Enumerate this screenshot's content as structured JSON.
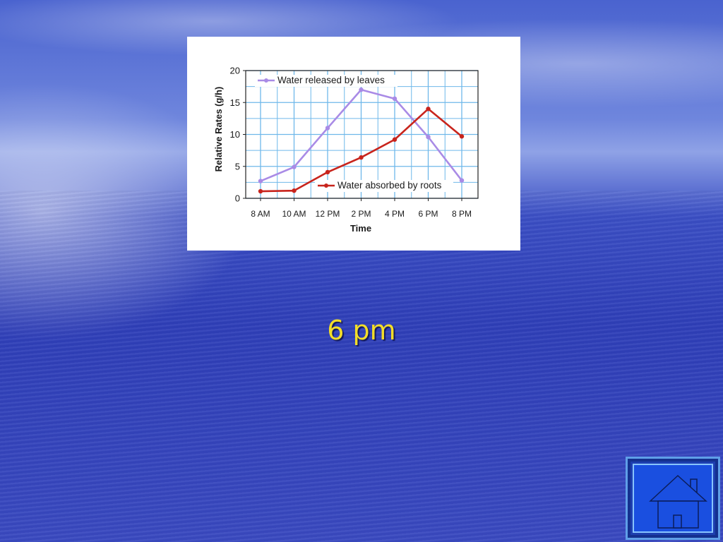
{
  "slide": {
    "answer": "6 pm"
  },
  "colors": {
    "leaves": "#a98be6",
    "roots": "#c8241c",
    "grid": "#6fb8ea",
    "answer": "#f2dd2a"
  },
  "home_button": {
    "icon": "home-icon"
  },
  "chart_data": {
    "type": "line",
    "xlabel": "Time",
    "ylabel": "Relative Rates (g/h)",
    "categories": [
      "8 AM",
      "10 AM",
      "12 PM",
      "2 PM",
      "4 PM",
      "6 PM",
      "8 PM"
    ],
    "yticks": [
      "0",
      "5",
      "10",
      "15",
      "20"
    ],
    "ylim": [
      0,
      20
    ],
    "grid": true,
    "series": [
      {
        "name": "Water released by leaves",
        "color": "#a98be6",
        "values": [
          2.7,
          4.9,
          11.0,
          17.0,
          15.6,
          9.6,
          2.8
        ]
      },
      {
        "name": "Water absorbed by roots",
        "color": "#c8241c",
        "values": [
          1.1,
          1.2,
          4.1,
          6.4,
          9.2,
          14.0,
          9.7
        ]
      }
    ]
  }
}
